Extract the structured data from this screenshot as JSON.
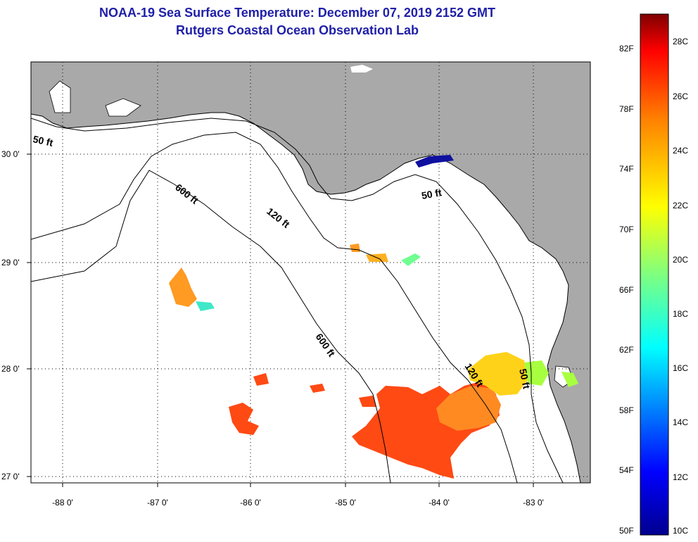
{
  "header": {
    "title": "NOAA-19 Sea Surface Temperature:  December 07, 2019 2152 GMT",
    "subtitle": "Rutgers Coastal Ocean Observation Lab"
  },
  "axes": {
    "lat_labels": [
      "30 0'",
      "29 0'",
      "28 0'",
      "27 0'"
    ],
    "lon_labels": [
      "-88 0'",
      "-87 0'",
      "-86 0'",
      "-85 0'",
      "-84 0'",
      "-83 0'"
    ]
  },
  "contours": {
    "c50_a": "50 ft",
    "c50_b": "50 ft",
    "c50_c": "50 ft",
    "c120_a": "120 ft",
    "c120_b": "120 ft",
    "c600_a": "600 ft",
    "c600_b": "600 ft"
  },
  "colorbar": {
    "f_labels": [
      "82F",
      "78F",
      "74F",
      "70F",
      "66F",
      "62F",
      "58F",
      "54F",
      "50F"
    ],
    "c_labels": [
      "28C",
      "26C",
      "24C",
      "22C",
      "20C",
      "18C",
      "16C",
      "14C",
      "12C",
      "10C"
    ],
    "colors": [
      "#7f0000",
      "#ff0000",
      "#ff7f00",
      "#ffff00",
      "#7fff7f",
      "#00ffff",
      "#007fff",
      "#0000ff",
      "#00008f"
    ]
  },
  "colors": {
    "land": "#a9a9a9",
    "water": "#ffffff",
    "warm_patch": "#ff4010",
    "mid_patch": "#ff8a20",
    "cool_patch": "#a0ff40"
  }
}
